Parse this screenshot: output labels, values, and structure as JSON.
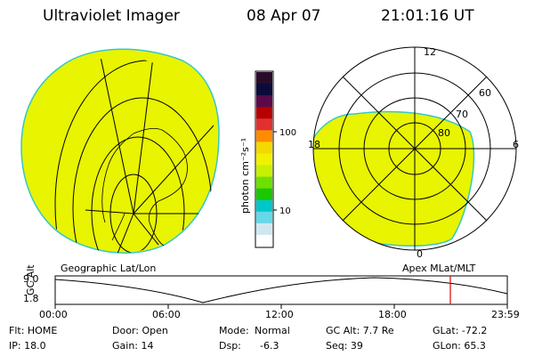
{
  "header": {
    "title": "Ultraviolet Imager",
    "date": "08 Apr 07",
    "time": "21:01:16 UT"
  },
  "colorbar": {
    "unit_label": "photon cm⁻²s⁻¹",
    "tick_labels": [
      "100",
      "10"
    ],
    "colors": [
      "#2a0a2a",
      "#0b0b3a",
      "#5a0a4a",
      "#b80000",
      "#e03030",
      "#ff8c00",
      "#f4d800",
      "#f2f200",
      "#c8f000",
      "#6ee000",
      "#1ac800",
      "#00c8c8",
      "#66d8e8",
      "#cfe8f0",
      "#ffffff"
    ]
  },
  "left_panel": {
    "caption": "Geographic Lat/Lon",
    "fill_color": "#e8f400"
  },
  "right_panel": {
    "caption": "Apex MLat/MLT",
    "fill_color": "#e8f400",
    "mlt_labels": {
      "top": "12",
      "left": "18",
      "right": "6",
      "bottom": "0"
    },
    "lat_labels": [
      "60",
      "70",
      "80"
    ]
  },
  "altitude_plot": {
    "ylabel": "GC Alt",
    "y_tick_labels": [
      "9.0",
      "1.8"
    ],
    "x_tick_labels": [
      "00:00",
      "06:00",
      "12:00",
      "18:00",
      "23:59"
    ],
    "marker_color": "#e00000"
  },
  "info": {
    "flt": "Flt: HOME",
    "door": "Door: Open",
    "mode_key": "Mode:",
    "mode_val": "Normal",
    "gcalt": "GC Alt: 7.7 Re",
    "glat": "GLat: -72.2",
    "ip": "IP: 18.0",
    "gain": "Gain: 14",
    "dsp_key": "Dsp:",
    "dsp_val": "-6.3",
    "seq": "Seq: 39",
    "glon": "GLon: 65.3"
  }
}
